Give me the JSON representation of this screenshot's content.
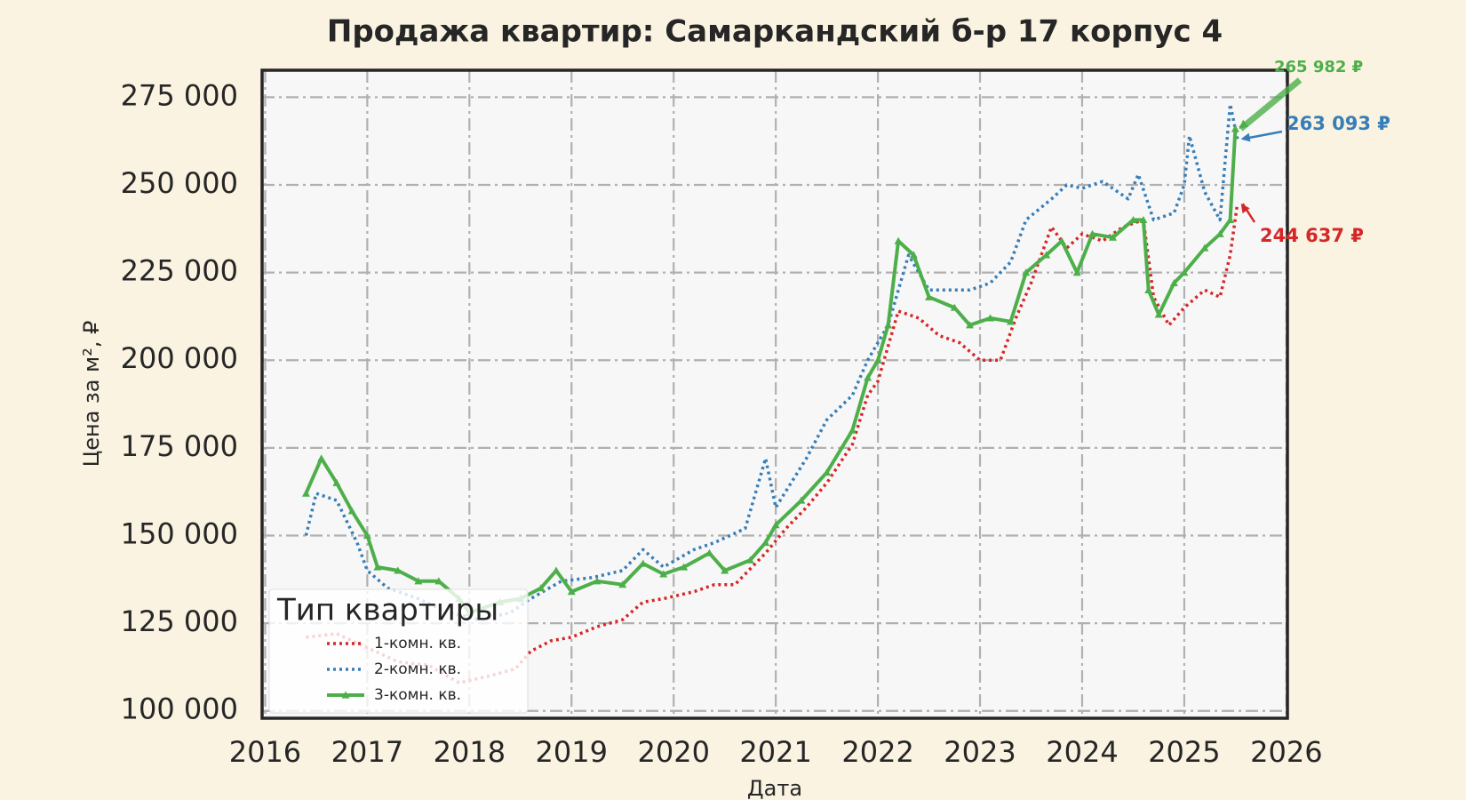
{
  "chart_data": {
    "type": "line",
    "title": "Продажа квартир: Самаркандский б-р 17 корпус 4",
    "x_label": "Дата",
    "y_label": "Цена за м², ₽",
    "legend_title": "Тип квартиры",
    "legend": "lower left",
    "grid": true,
    "xlim": [
      2015.97,
      2026.01
    ],
    "xticks": [
      2016,
      2017,
      2018,
      2019,
      2020,
      2021,
      2022,
      2023,
      2024,
      2025,
      2026
    ],
    "ylim": [
      97900,
      282700
    ],
    "yticks": [
      {
        "value": 100000,
        "label": "100 000"
      },
      {
        "value": 125000,
        "label": "125 000"
      },
      {
        "value": 150000,
        "label": "150 000"
      },
      {
        "value": 175000,
        "label": "175 000"
      },
      {
        "value": 200000,
        "label": "200 000"
      },
      {
        "value": 225000,
        "label": "225 000"
      },
      {
        "value": 250000,
        "label": "250 000"
      },
      {
        "value": 275000,
        "label": "275 000"
      }
    ],
    "series": [
      {
        "name": "1-комн. кв.",
        "color": "#d62728",
        "linestyle": "dotted",
        "end_label": "244 637 ₽",
        "x": [
          2016.4,
          2016.7,
          2017.0,
          2017.3,
          2017.6,
          2017.9,
          2018.2,
          2018.45,
          2018.6,
          2018.8,
          2019.0,
          2019.25,
          2019.5,
          2019.7,
          2019.9,
          2020.2,
          2020.4,
          2020.6,
          2020.9,
          2021.1,
          2021.3,
          2021.5,
          2021.75,
          2021.9,
          2022.0,
          2022.2,
          2022.4,
          2022.6,
          2022.8,
          2023.0,
          2023.2,
          2023.35,
          2023.5,
          2023.7,
          2023.85,
          2024.0,
          2024.2,
          2024.4,
          2024.6,
          2024.7,
          2024.85,
          2025.0,
          2025.2,
          2025.35,
          2025.45,
          2025.52
        ],
        "values": [
          121000,
          122000,
          118000,
          114000,
          113000,
          108000,
          110000,
          112000,
          117000,
          120000,
          121000,
          124000,
          126000,
          131000,
          132000,
          134000,
          136000,
          136000,
          145000,
          152000,
          158000,
          165000,
          176000,
          190000,
          194000,
          214000,
          212000,
          207000,
          205000,
          200000,
          200000,
          212000,
          222000,
          238000,
          232000,
          236000,
          234000,
          238000,
          240000,
          218000,
          210000,
          215000,
          220000,
          218000,
          230000,
          244637
        ]
      },
      {
        "name": "2-комн. кв.",
        "color": "#377eb8",
        "linestyle": "dotted",
        "end_label": "263 093 ₽",
        "x": [
          2016.4,
          2016.5,
          2016.7,
          2016.9,
          2017.0,
          2017.2,
          2017.5,
          2017.8,
          2018.1,
          2018.4,
          2018.6,
          2018.9,
          2019.2,
          2019.5,
          2019.7,
          2019.9,
          2020.2,
          2020.4,
          2020.7,
          2020.9,
          2021.0,
          2021.3,
          2021.5,
          2021.75,
          2021.9,
          2022.1,
          2022.3,
          2022.5,
          2022.75,
          2022.9,
          2023.1,
          2023.3,
          2023.45,
          2023.7,
          2023.85,
          2024.0,
          2024.2,
          2024.45,
          2024.55,
          2024.7,
          2024.9,
          2025.0,
          2025.05,
          2025.2,
          2025.35,
          2025.45,
          2025.52
        ],
        "values": [
          150000,
          162000,
          160000,
          148000,
          140000,
          135000,
          132000,
          128000,
          126000,
          128000,
          132000,
          137000,
          138000,
          140000,
          146000,
          141000,
          146000,
          148000,
          152000,
          172000,
          158000,
          172000,
          183000,
          190000,
          200000,
          210000,
          230000,
          220000,
          220000,
          220000,
          222000,
          228000,
          240000,
          246000,
          250000,
          249000,
          251000,
          246000,
          253000,
          240000,
          242000,
          250000,
          264000,
          248000,
          240000,
          273000,
          263093
        ]
      },
      {
        "name": "3-комн. кв.",
        "color": "#4daf4a",
        "linestyle": "solid",
        "marker": "triangle",
        "end_label": "265 982 ₽",
        "x": [
          2016.4,
          2016.55,
          2016.7,
          2016.85,
          2017.0,
          2017.1,
          2017.3,
          2017.5,
          2017.7,
          2017.9,
          2018.0,
          2018.3,
          2018.5,
          2018.7,
          2018.85,
          2019.0,
          2019.25,
          2019.5,
          2019.7,
          2019.9,
          2020.1,
          2020.35,
          2020.5,
          2020.75,
          2020.9,
          2021.0,
          2021.25,
          2021.5,
          2021.75,
          2021.9,
          2022.0,
          2022.1,
          2022.2,
          2022.35,
          2022.5,
          2022.75,
          2022.9,
          2023.1,
          2023.3,
          2023.45,
          2023.65,
          2023.8,
          2023.95,
          2024.1,
          2024.3,
          2024.5,
          2024.6,
          2024.65,
          2024.75,
          2024.9,
          2025.0,
          2025.2,
          2025.35,
          2025.45,
          2025.5
        ],
        "values": [
          162000,
          172000,
          165000,
          157000,
          150000,
          141000,
          140000,
          137000,
          137000,
          132000,
          128000,
          131000,
          132000,
          135000,
          140000,
          134000,
          137000,
          136000,
          142000,
          139000,
          141000,
          145000,
          140000,
          143000,
          148000,
          153000,
          160000,
          168000,
          180000,
          195000,
          200000,
          210000,
          234000,
          230000,
          218000,
          215000,
          210000,
          212000,
          211000,
          225000,
          230000,
          234000,
          225000,
          236000,
          235000,
          240000,
          240000,
          220000,
          213000,
          222000,
          225000,
          232000,
          236000,
          240000,
          265982
        ]
      }
    ]
  }
}
